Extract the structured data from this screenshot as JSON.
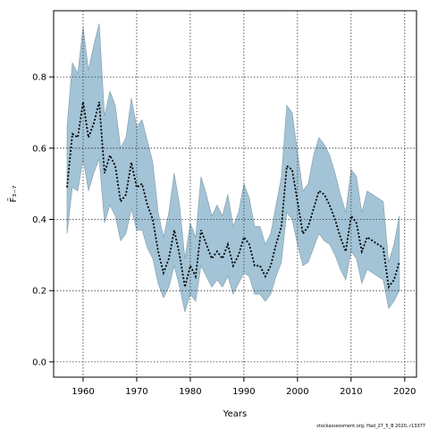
{
  "chart_data": {
    "type": "line",
    "x_label": "Years",
    "y_label": "F̄₃₋₇",
    "footnote": "stockassessment.org, Had_27_5_B 2020, r13377",
    "x": [
      1957,
      1958,
      1959,
      1960,
      1961,
      1962,
      1963,
      1964,
      1965,
      1966,
      1967,
      1968,
      1969,
      1970,
      1971,
      1972,
      1973,
      1974,
      1975,
      1976,
      1977,
      1978,
      1979,
      1980,
      1981,
      1982,
      1983,
      1984,
      1985,
      1986,
      1987,
      1988,
      1989,
      1990,
      1991,
      1992,
      1993,
      1994,
      1995,
      1996,
      1997,
      1998,
      1999,
      2000,
      2001,
      2002,
      2003,
      2004,
      2005,
      2006,
      2007,
      2008,
      2009,
      2010,
      2011,
      2012,
      2013,
      2014,
      2015,
      2016,
      2017,
      2018,
      2019
    ],
    "series": [
      {
        "color": "#000000",
        "values": [
          0.49,
          0.64,
          0.63,
          0.73,
          0.63,
          0.67,
          0.73,
          0.53,
          0.58,
          0.55,
          0.45,
          0.47,
          0.56,
          0.49,
          0.5,
          0.44,
          0.4,
          0.31,
          0.25,
          0.29,
          0.37,
          0.3,
          0.21,
          0.27,
          0.24,
          0.37,
          0.33,
          0.29,
          0.31,
          0.29,
          0.33,
          0.27,
          0.3,
          0.35,
          0.33,
          0.27,
          0.27,
          0.24,
          0.27,
          0.33,
          0.38,
          0.55,
          0.54,
          0.45,
          0.36,
          0.38,
          0.43,
          0.48,
          0.47,
          0.44,
          0.4,
          0.35,
          0.31,
          0.41,
          0.39,
          0.31,
          0.35,
          0.34,
          0.33,
          0.32,
          0.21,
          0.23,
          0.28
        ]
      }
    ],
    "band": {
      "color": "#a3c4d6",
      "upper": [
        0.66,
        0.84,
        0.81,
        0.94,
        0.82,
        0.89,
        0.95,
        0.69,
        0.76,
        0.72,
        0.6,
        0.63,
        0.74,
        0.66,
        0.68,
        0.62,
        0.56,
        0.42,
        0.35,
        0.42,
        0.53,
        0.44,
        0.29,
        0.39,
        0.35,
        0.52,
        0.47,
        0.41,
        0.44,
        0.41,
        0.47,
        0.38,
        0.42,
        0.5,
        0.46,
        0.38,
        0.38,
        0.33,
        0.36,
        0.44,
        0.52,
        0.72,
        0.7,
        0.59,
        0.48,
        0.5,
        0.58,
        0.63,
        0.61,
        0.58,
        0.53,
        0.47,
        0.42,
        0.54,
        0.52,
        0.42,
        0.48,
        0.47,
        0.46,
        0.45,
        0.28,
        0.33,
        0.41
      ],
      "lower": [
        0.36,
        0.49,
        0.48,
        0.57,
        0.48,
        0.53,
        0.57,
        0.39,
        0.44,
        0.41,
        0.34,
        0.36,
        0.43,
        0.37,
        0.37,
        0.32,
        0.29,
        0.22,
        0.18,
        0.21,
        0.27,
        0.21,
        0.14,
        0.19,
        0.17,
        0.27,
        0.24,
        0.21,
        0.23,
        0.21,
        0.24,
        0.19,
        0.22,
        0.25,
        0.24,
        0.19,
        0.19,
        0.17,
        0.19,
        0.24,
        0.28,
        0.42,
        0.4,
        0.33,
        0.27,
        0.28,
        0.32,
        0.36,
        0.34,
        0.33,
        0.3,
        0.26,
        0.23,
        0.31,
        0.29,
        0.22,
        0.26,
        0.25,
        0.24,
        0.23,
        0.15,
        0.17,
        0.2
      ]
    },
    "xlim": [
      1954.5,
      2022.2
    ],
    "ylim": [
      -0.043,
      0.986
    ],
    "xticks": [
      1960,
      1970,
      1980,
      1990,
      2000,
      2010,
      2020
    ],
    "yticks": [
      {
        "value": 0,
        "label": "0.0"
      },
      0.2,
      0.4,
      0.6,
      0.8
    ],
    "grid": true
  }
}
